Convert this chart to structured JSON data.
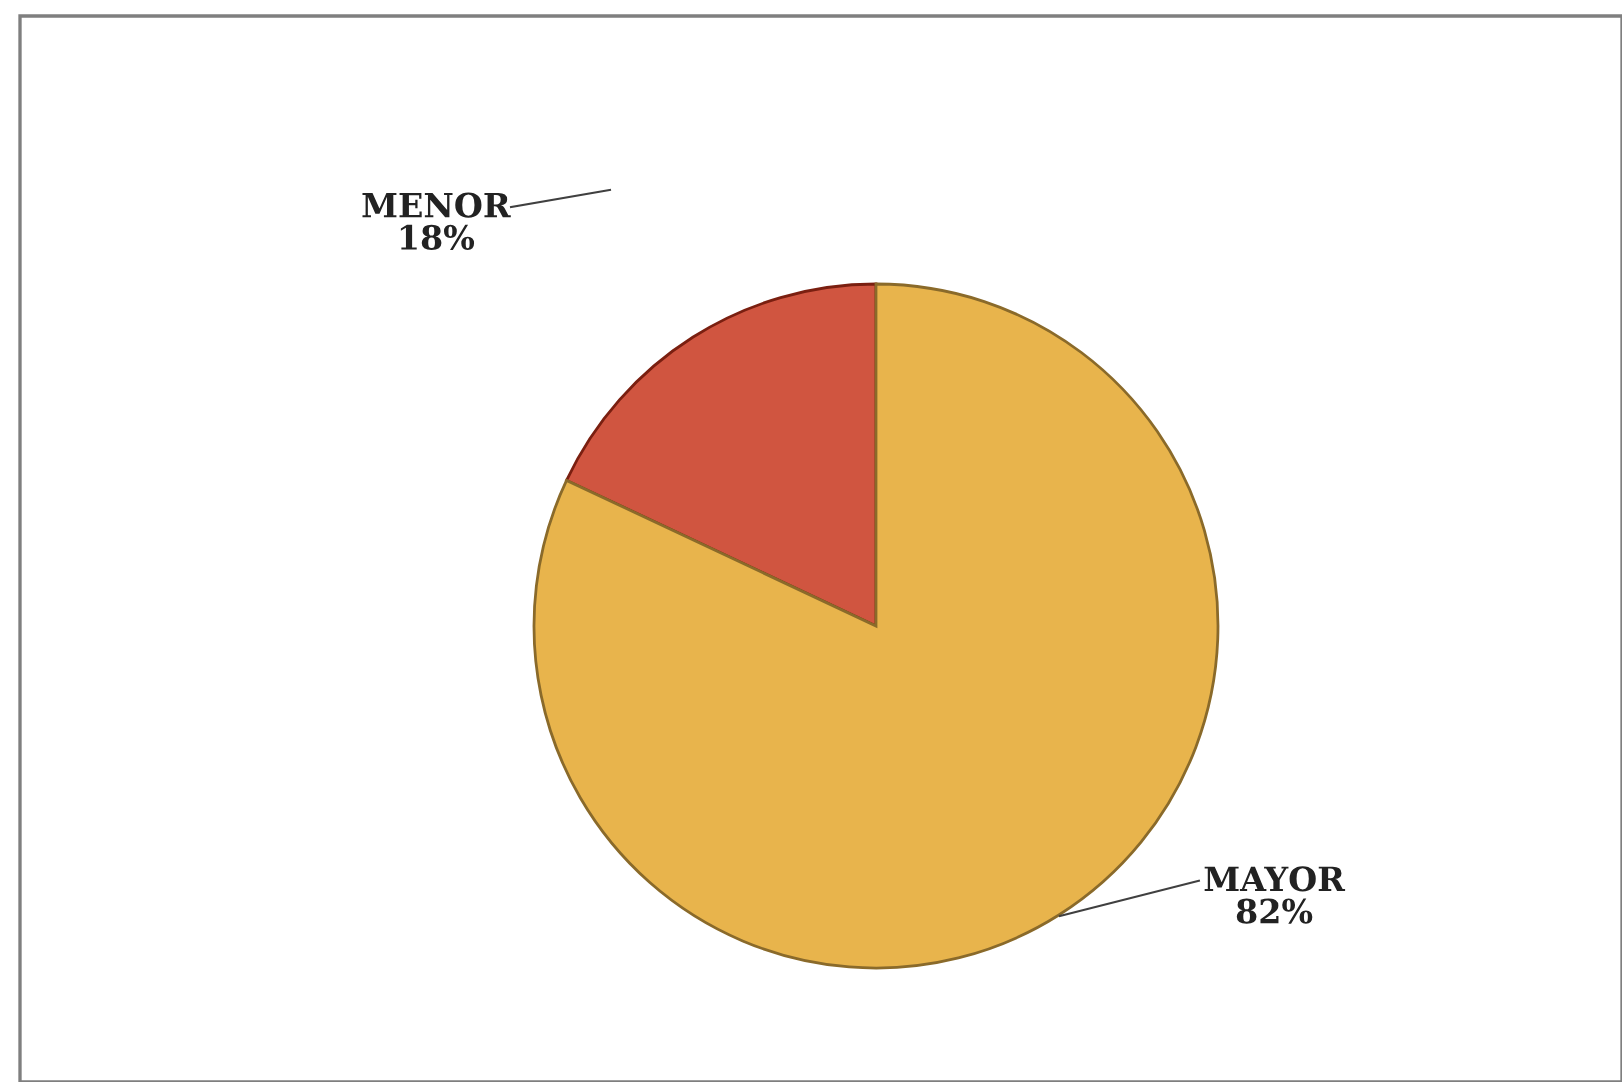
{
  "chart_data": {
    "type": "pie",
    "categories": [
      "MENOR",
      "MAYOR"
    ],
    "values": [
      18,
      82
    ],
    "colors": [
      "#d05540",
      "#e8b44c"
    ],
    "value_labels": [
      "18%",
      "82%"
    ]
  }
}
